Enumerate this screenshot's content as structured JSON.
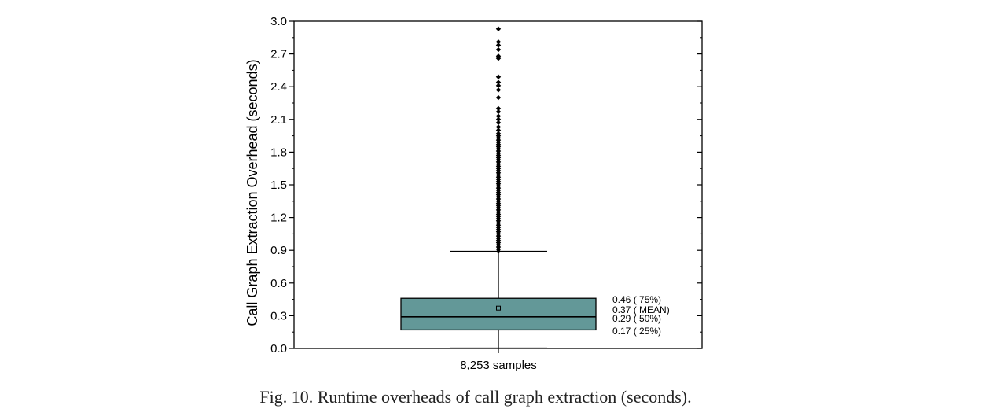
{
  "figure_caption": "Fig. 10.  Runtime overheads of call graph extraction (seconds).",
  "chart_data": {
    "type": "box",
    "title": "",
    "xlabel": "",
    "ylabel": "Call Graph Extraction Overhead  (seconds)",
    "category": "8,253 samples",
    "ylim": [
      0,
      3.0
    ],
    "yticks": [
      "0.0",
      "0.3",
      "0.6",
      "0.9",
      "1.2",
      "1.5",
      "1.8",
      "2.1",
      "2.4",
      "2.7",
      "3.0"
    ],
    "stats": {
      "q1": 0.17,
      "median": 0.29,
      "mean": 0.37,
      "q3": 0.46,
      "whisker_low": 0.0,
      "whisker_high": 0.89
    },
    "outliers": [
      0.89,
      0.91,
      0.93,
      0.95,
      0.97,
      0.99,
      1.01,
      1.03,
      1.05,
      1.07,
      1.09,
      1.11,
      1.13,
      1.15,
      1.17,
      1.19,
      1.21,
      1.23,
      1.25,
      1.27,
      1.29,
      1.31,
      1.33,
      1.35,
      1.37,
      1.39,
      1.41,
      1.43,
      1.45,
      1.47,
      1.49,
      1.51,
      1.53,
      1.55,
      1.57,
      1.59,
      1.61,
      1.63,
      1.65,
      1.67,
      1.69,
      1.71,
      1.73,
      1.75,
      1.77,
      1.79,
      1.81,
      1.83,
      1.85,
      1.87,
      1.89,
      1.91,
      1.93,
      1.95,
      1.97,
      2.0,
      2.03,
      2.07,
      2.1,
      2.13,
      2.17,
      2.2,
      2.3,
      2.37,
      2.41,
      2.44,
      2.49,
      2.66,
      2.68,
      2.74,
      2.78,
      2.81,
      2.93
    ],
    "box_color": "#639898",
    "annotations": [
      {
        "text": "0.46 ( 75%)",
        "value": 0.46
      },
      {
        "text": "0.37 ( MEAN)",
        "value": 0.37
      },
      {
        "text": "0.29 ( 50%)",
        "value": 0.29
      },
      {
        "text": "0.17 ( 25%)",
        "value": 0.17
      }
    ]
  }
}
